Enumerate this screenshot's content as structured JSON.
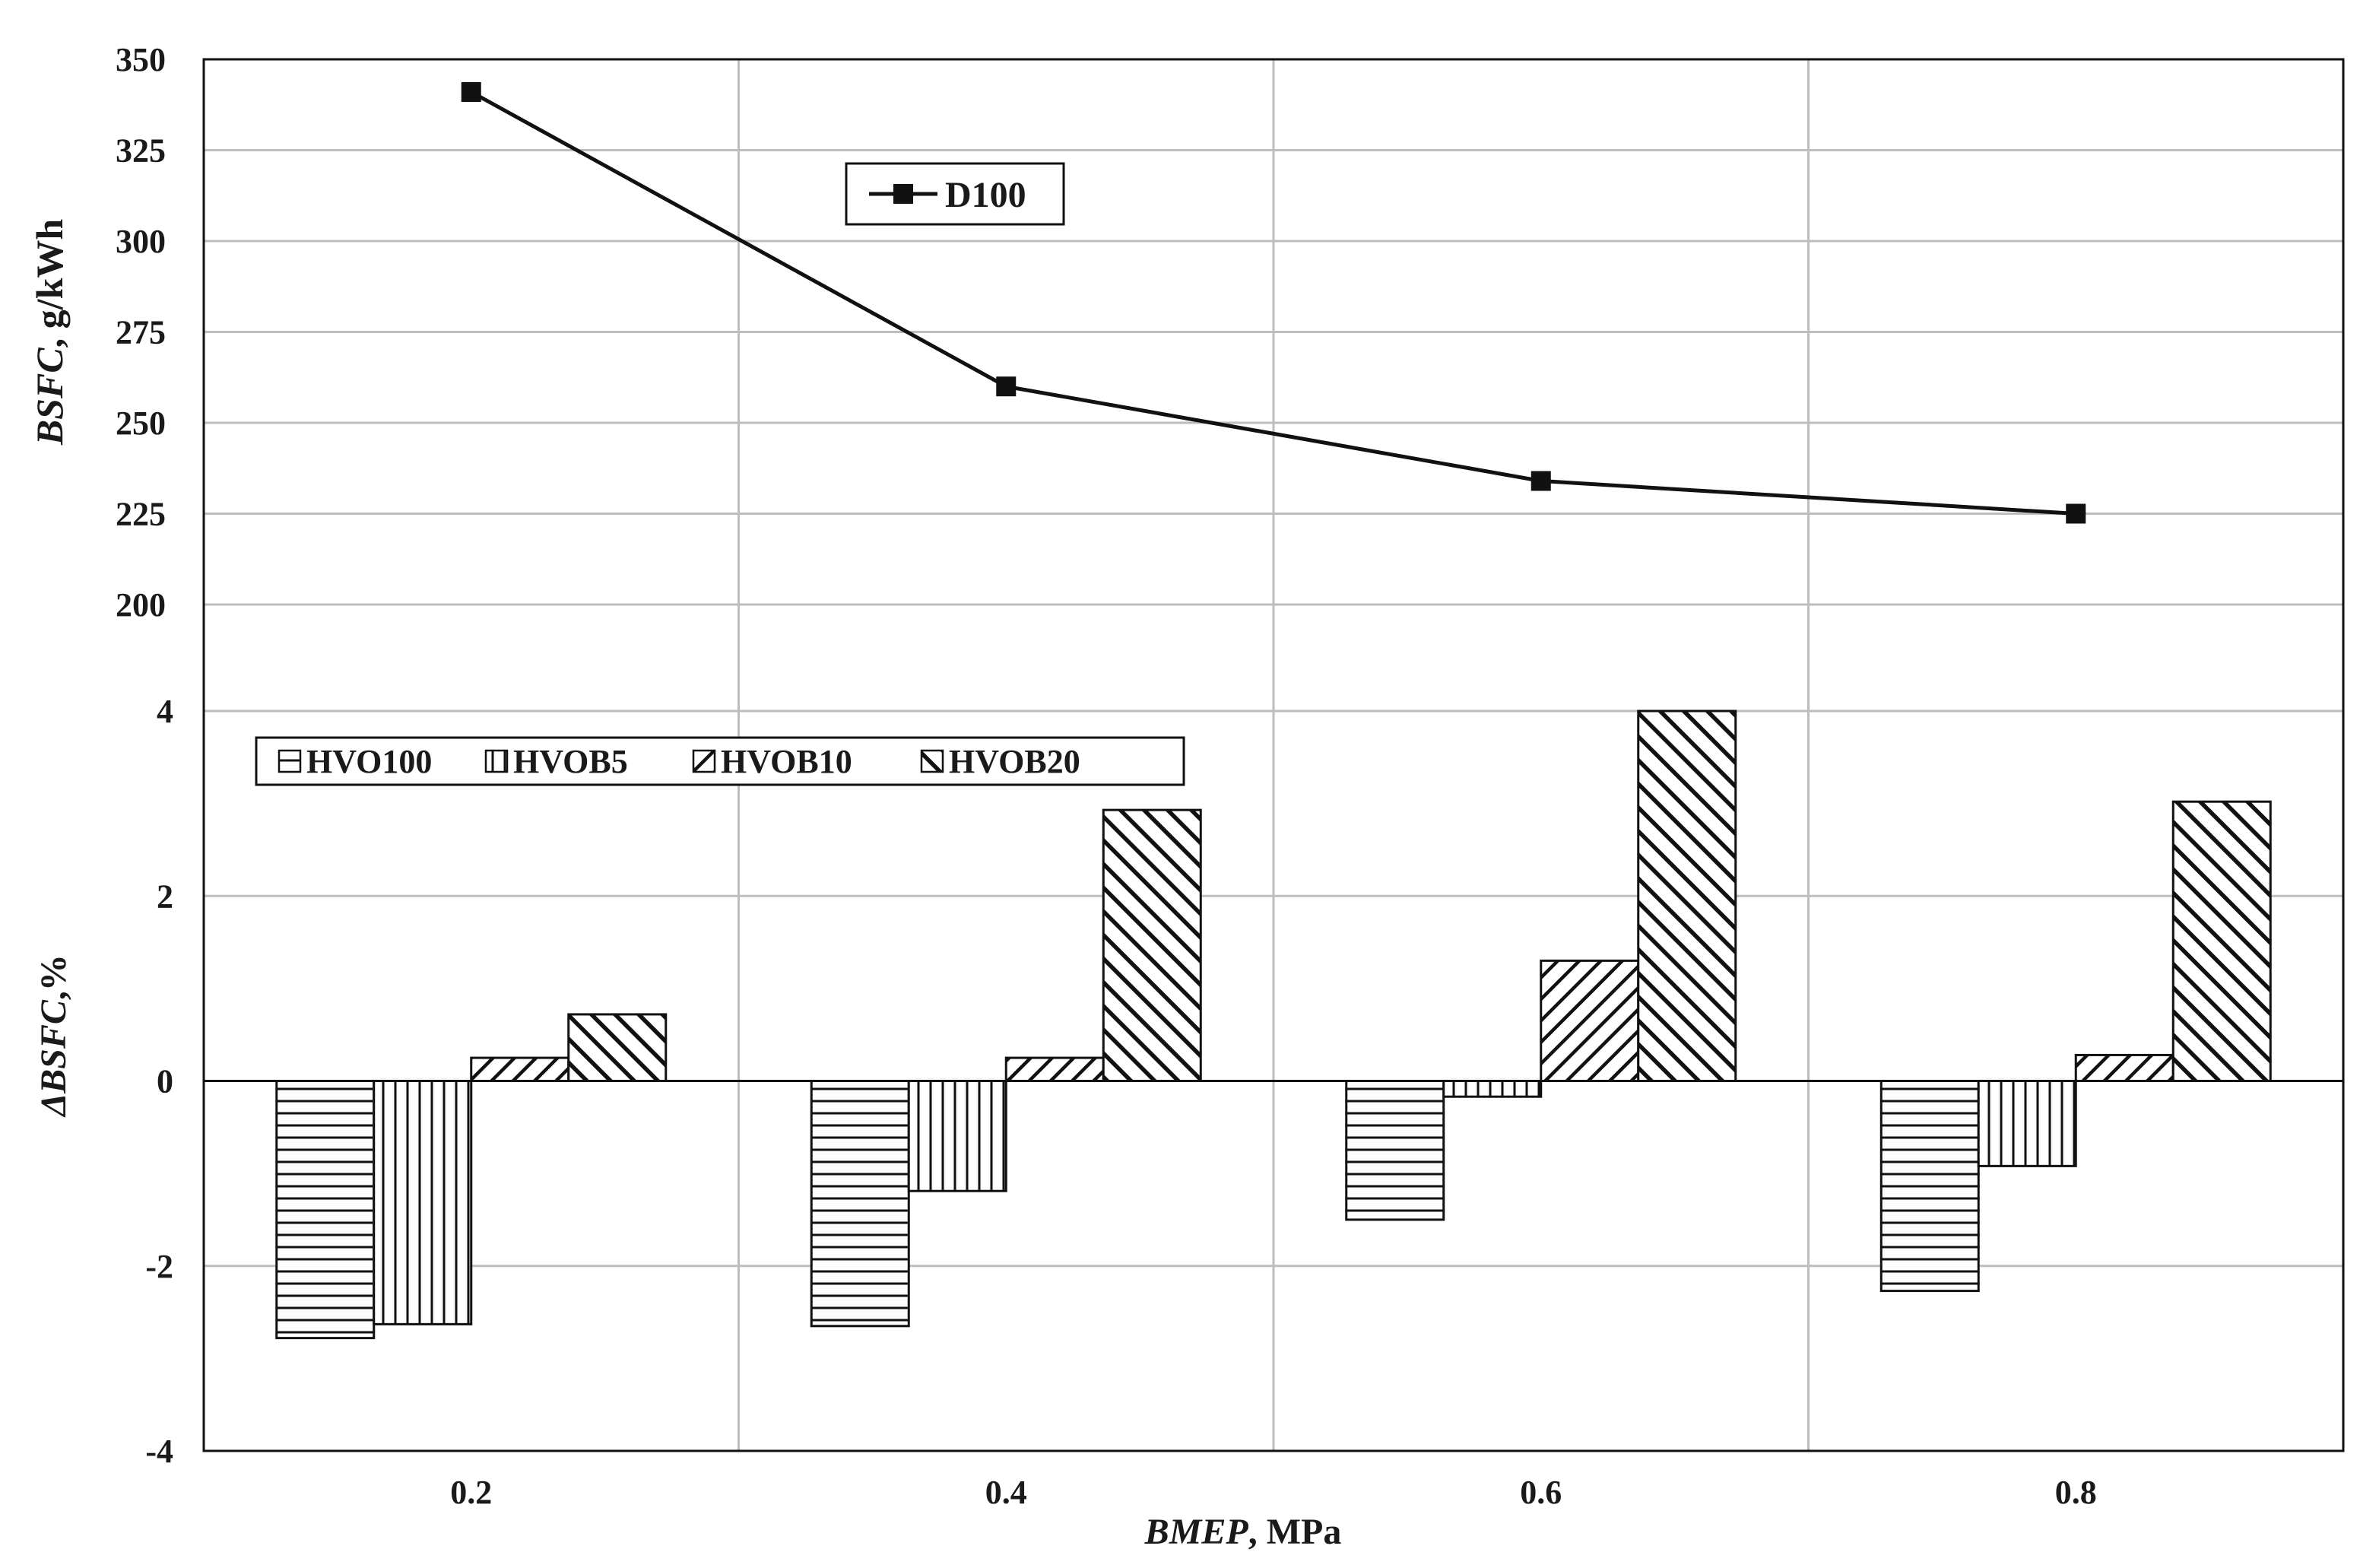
{
  "chart_data": [
    {
      "type": "line",
      "x": [
        0.2,
        0.4,
        0.6,
        0.8
      ],
      "series": [
        {
          "name": "D100",
          "values": [
            341,
            260,
            234,
            225
          ]
        }
      ],
      "ylabel_italic": "BSFC",
      "ylabel_rest": ", g/kWh",
      "ylim": [
        200,
        350
      ],
      "yticks": [
        "200",
        "225",
        "250",
        "275",
        "300",
        "325",
        "350"
      ],
      "grid": true,
      "legend_position": "top-center",
      "marker": "square"
    },
    {
      "type": "bar",
      "categories": [
        "0.2",
        "0.4",
        "0.6",
        "0.8"
      ],
      "series": [
        {
          "name": "HVO100",
          "values": [
            -2.78,
            -2.65,
            -1.5,
            -2.27
          ],
          "pattern": "horizontal-lines"
        },
        {
          "name": "HVOB5",
          "values": [
            -2.63,
            -1.19,
            -0.17,
            -0.92
          ],
          "pattern": "vertical-lines"
        },
        {
          "name": "HVOB10",
          "values": [
            0.25,
            0.25,
            1.3,
            0.28
          ],
          "pattern": "backward-diagonal"
        },
        {
          "name": "HVOB20",
          "values": [
            0.72,
            2.93,
            4.0,
            3.02
          ],
          "pattern": "forward-diagonal"
        }
      ],
      "ylabel_italic": "ΔBSFC",
      "ylabel_rest": ",%",
      "xlabel_italic": "BMEP",
      "xlabel_rest": ", MPa",
      "ylim": [
        -4,
        4
      ],
      "yticks": [
        "-4",
        "-2",
        "0",
        "2",
        "4"
      ],
      "grid": true,
      "legend_position": "top-left"
    }
  ]
}
